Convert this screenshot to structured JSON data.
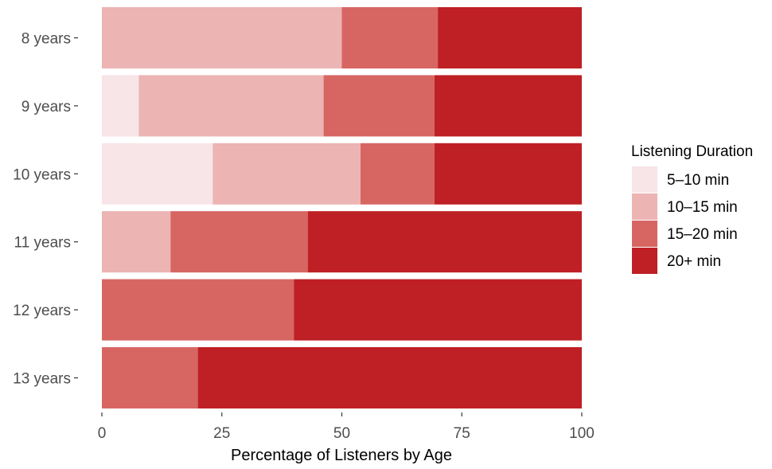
{
  "chart_data": {
    "type": "bar",
    "orientation": "horizontal",
    "stacked": true,
    "categories": [
      "8 years",
      "9 years",
      "10 years",
      "11 years",
      "12 years",
      "13 years"
    ],
    "series": [
      {
        "name": "5–10 min",
        "color": "#f8e5e8",
        "values": [
          0,
          7.7,
          23.1,
          0,
          0,
          0
        ]
      },
      {
        "name": "10–15 min",
        "color": "#ecb4b3",
        "values": [
          50,
          38.5,
          30.8,
          14.3,
          0,
          0
        ]
      },
      {
        "name": "15–20 min",
        "color": "#d76663",
        "values": [
          20,
          23.1,
          15.4,
          28.6,
          40,
          20
        ]
      },
      {
        "name": "20+ min",
        "color": "#be2025",
        "values": [
          30,
          30.7,
          30.7,
          57.1,
          60,
          80
        ]
      }
    ],
    "title": "",
    "xlabel": "Percentage of Listeners by Age",
    "ylabel": "",
    "xlim": [
      0,
      100
    ],
    "xticks": [
      "0",
      "25",
      "50",
      "75",
      "100"
    ],
    "legend": {
      "title": "Listening Duration",
      "position": "right"
    },
    "grid": false
  }
}
